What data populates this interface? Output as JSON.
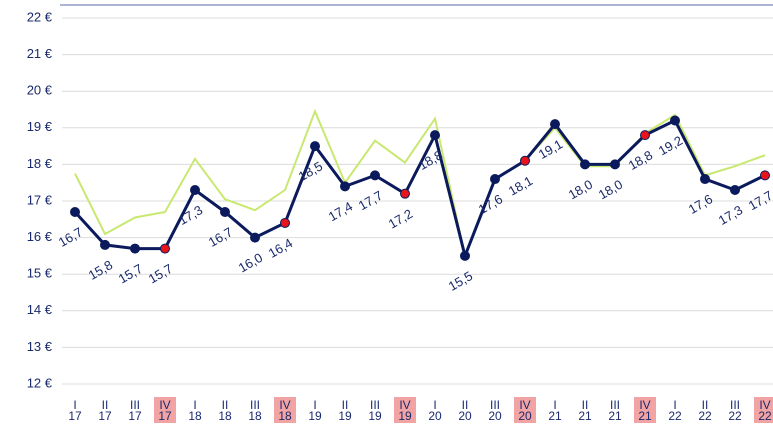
{
  "chart_data": {
    "type": "line",
    "categories": [
      [
        "I",
        "17"
      ],
      [
        "II",
        "17"
      ],
      [
        "III",
        "17"
      ],
      [
        "IV",
        "17"
      ],
      [
        "I",
        "18"
      ],
      [
        "II",
        "18"
      ],
      [
        "III",
        "18"
      ],
      [
        "IV",
        "18"
      ],
      [
        "I",
        "19"
      ],
      [
        "II",
        "19"
      ],
      [
        "III",
        "19"
      ],
      [
        "IV",
        "19"
      ],
      [
        "I",
        "20"
      ],
      [
        "II",
        "20"
      ],
      [
        "III",
        "20"
      ],
      [
        "IV",
        "20"
      ],
      [
        "I",
        "21"
      ],
      [
        "II",
        "21"
      ],
      [
        "III",
        "21"
      ],
      [
        "IV",
        "21"
      ],
      [
        "I",
        "22"
      ],
      [
        "II",
        "22"
      ],
      [
        "III",
        "22"
      ],
      [
        "IV",
        "22"
      ]
    ],
    "series": [
      {
        "color": "#c8e870",
        "values": [
          17.75,
          16.1,
          16.55,
          16.7,
          18.15,
          17.05,
          16.75,
          17.3,
          19.45,
          17.5,
          18.65,
          18.05,
          19.25,
          15.5,
          17.6,
          18.1,
          19.0,
          17.95,
          17.95,
          18.85,
          19.35,
          17.7,
          17.95,
          18.25
        ]
      },
      {
        "color": "#0b1a5c",
        "marker_color": "#0b1a5c",
        "values": [
          16.7,
          15.8,
          15.7,
          15.7,
          17.3,
          16.7,
          16.0,
          16.4,
          18.5,
          17.4,
          17.7,
          17.2,
          18.8,
          15.5,
          17.6,
          18.1,
          19.1,
          18.0,
          18.0,
          18.8,
          19.2,
          17.6,
          17.3,
          17.7
        ],
        "value_labels": [
          "16,7",
          "15,8",
          "15,7",
          "15,7",
          "17,3",
          "16,7",
          "16,0",
          "16,4",
          "18,5",
          "17,4",
          "17,7",
          "17,2",
          "18,8",
          "15,5",
          "17,6",
          "18,1",
          "19,1",
          "18,0",
          "18,0",
          "18,8",
          "19,2",
          "17,6",
          "17,3",
          "17,7"
        ]
      }
    ],
    "highlight": [
      3,
      7,
      11,
      15,
      19,
      23
    ],
    "highlight_color": "#f2a3a3",
    "highlight_marker_color": "#e8141c",
    "ylim": [
      12,
      22
    ],
    "yticks": [
      {
        "value": 12,
        "label": "12 €"
      },
      {
        "value": 13,
        "label": "13 €"
      },
      {
        "value": 14,
        "label": "14 €"
      },
      {
        "value": 15,
        "label": "15 €"
      },
      {
        "value": 16,
        "label": "16 €"
      },
      {
        "value": 17,
        "label": "17 €"
      },
      {
        "value": 18,
        "label": "18 €"
      },
      {
        "value": 19,
        "label": "19 €"
      },
      {
        "value": 20,
        "label": "20 €"
      },
      {
        "value": 21,
        "label": "21 €"
      },
      {
        "value": 22,
        "label": "22 €"
      }
    ],
    "grid": true
  }
}
